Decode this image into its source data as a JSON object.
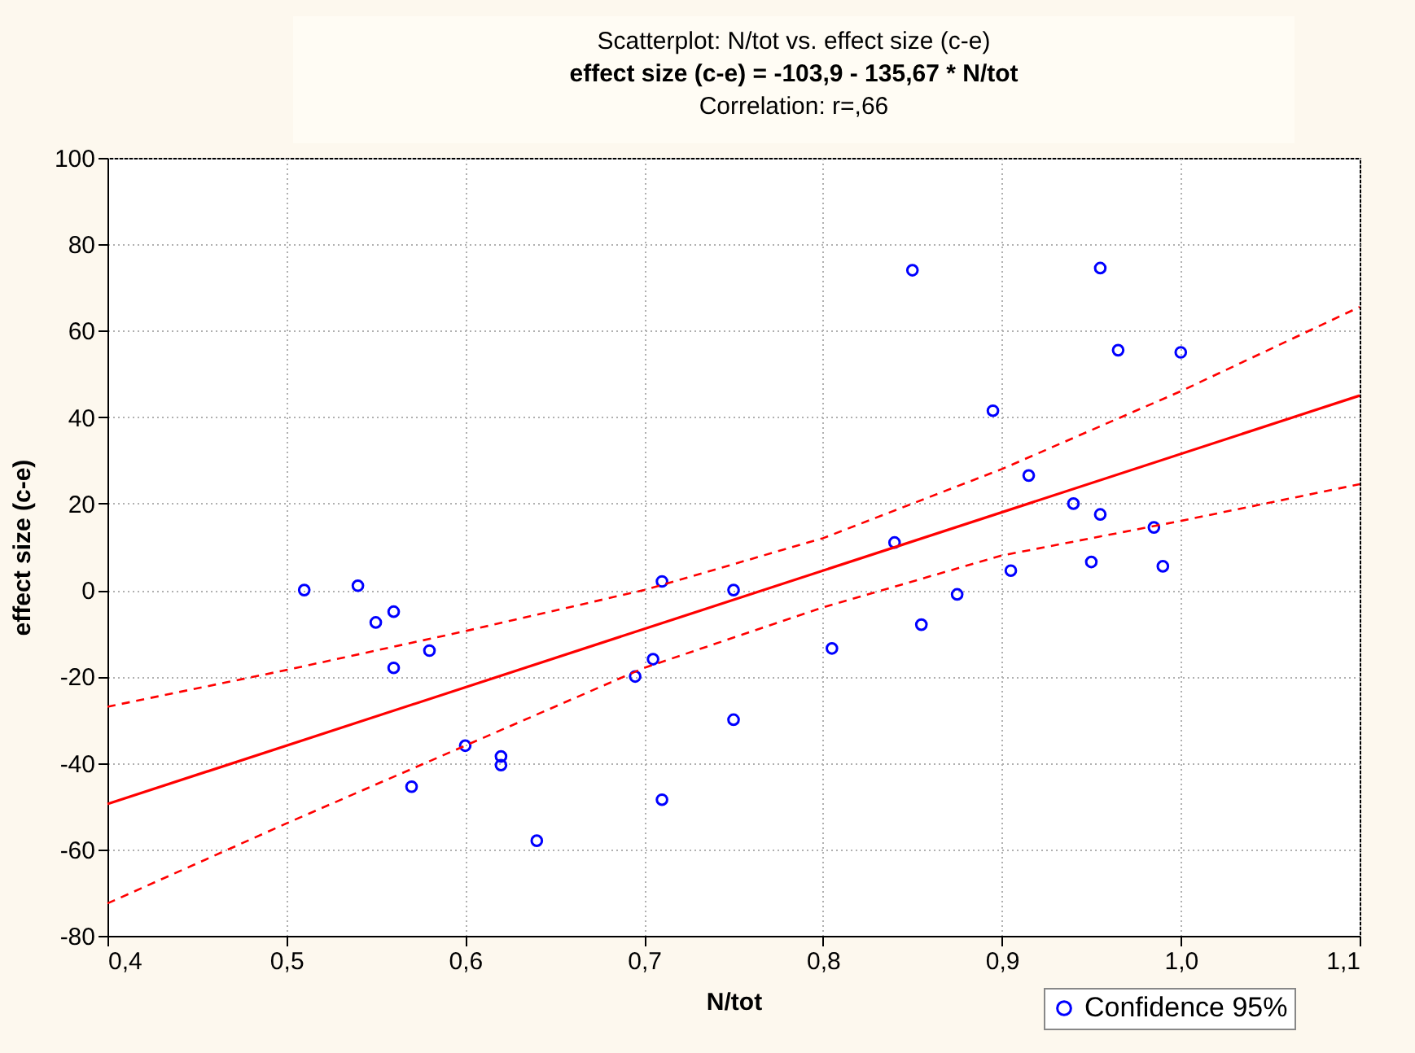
{
  "chart_data": {
    "type": "scatter",
    "title": "Scatterplot: N/tot vs. effect size (c-e)",
    "subtitle": "effect size (c-e) = -103,9 - 135,67 * N/tot",
    "annotations": [
      "Correlation: r=,66"
    ],
    "xlabel": "N/tot",
    "ylabel": "effect size (c-e)",
    "xlim": [
      0.4,
      1.1
    ],
    "xticks": [
      {
        "value": 0.4,
        "label": "0,4"
      },
      {
        "value": 0.5,
        "label": "0,5"
      },
      {
        "value": 0.6,
        "label": "0,6"
      },
      {
        "value": 0.7,
        "label": "0,7"
      },
      {
        "value": 0.8,
        "label": "0,8"
      },
      {
        "value": 0.9,
        "label": "0,9"
      },
      {
        "value": 1.0,
        "label": "1,0"
      },
      {
        "value": 1.1,
        "label": "1,1"
      }
    ],
    "ylim": [
      -80,
      100
    ],
    "yticks": [
      -80,
      -60,
      -40,
      -20,
      0,
      20,
      40,
      60,
      80,
      100
    ],
    "grid": true,
    "legend": "bottom right",
    "series": [
      {
        "name": "Confidence 95%",
        "marker": "circle",
        "color": "#0000ff",
        "x": [
          0.51,
          0.54,
          0.55,
          0.56,
          0.56,
          0.58,
          0.6,
          0.62,
          0.62,
          0.57,
          0.64,
          0.695,
          0.705,
          0.71,
          0.71,
          0.75,
          0.75,
          0.805,
          0.84,
          0.85,
          0.855,
          0.875,
          0.895,
          0.905,
          0.915,
          0.94,
          0.95,
          0.955,
          0.955,
          0.965,
          0.985,
          0.99,
          1.0
        ],
        "values": [
          0,
          1,
          -7.5,
          -5,
          -18,
          -14,
          -36,
          -38.5,
          -40.5,
          -45.5,
          -58,
          -20,
          -16,
          2,
          -48.5,
          0,
          -30,
          -13.5,
          11,
          74,
          -8,
          -1,
          41.5,
          4.5,
          26.5,
          20,
          6.5,
          17.5,
          74.5,
          55.5,
          14.5,
          5.5,
          55
        ]
      },
      {
        "type": "line",
        "marker": "none",
        "line_style": "solid",
        "color": "#ff0000",
        "x": [
          0.4,
          1.1
        ],
        "values": [
          -49.5,
          45
        ]
      },
      {
        "type": "line",
        "marker": "none",
        "line_style": "dashed",
        "color": "#ff0000",
        "x": [
          0.4,
          0.5,
          0.6,
          0.7,
          0.8,
          0.9,
          1.0,
          1.1
        ],
        "values": [
          -72.5,
          -54,
          -36,
          -18,
          -4,
          8,
          16,
          24.5
        ]
      },
      {
        "type": "line",
        "marker": "none",
        "line_style": "dashed",
        "color": "#ff0000",
        "x": [
          0.4,
          0.5,
          0.6,
          0.7,
          0.8,
          0.9,
          1.0,
          1.1
        ],
        "values": [
          -27,
          -18.5,
          -9.5,
          0,
          12,
          28,
          46,
          65.5
        ]
      }
    ]
  }
}
